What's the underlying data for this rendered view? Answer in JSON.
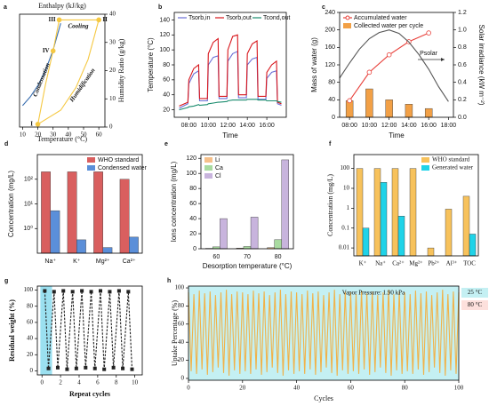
{
  "chart_data": [
    {
      "panel": "a",
      "type": "line",
      "title": "Enthalpy (kJ/kg)",
      "xlabel": "Temperature (°C)",
      "ylabel": "Humidity Ratio (g/kg)",
      "y_axis_side": "right",
      "xlim": [
        8,
        64
      ],
      "xticks": [
        10,
        20,
        30,
        40,
        50,
        60
      ],
      "ylim": [
        0,
        40
      ],
      "yticks": [
        0,
        10,
        20,
        30,
        40
      ],
      "series": [
        {
          "color": "#3a6fb0",
          "x": [
            10,
            15,
            20,
            25,
            30,
            35
          ],
          "values": [
            7.6,
            10.7,
            14.7,
            20,
            27.3,
            36.8
          ]
        },
        {
          "color": "#f5c842",
          "x": [
            20,
            35,
            45,
            53,
            60,
            34,
            30,
            25,
            20
          ],
          "values": [
            1,
            6,
            14,
            24,
            38,
            38,
            27,
            15,
            1
          ]
        },
        {
          "color": "#f5c842",
          "mode": "markers",
          "marker": "circle",
          "x": [
            20,
            60,
            34,
            30
          ],
          "values": [
            1,
            38,
            38,
            27
          ],
          "labels": [
            "I",
            "II",
            "III",
            "IV"
          ]
        }
      ],
      "annotations": [
        "Cooling",
        "Condensation",
        "Humidification"
      ]
    },
    {
      "panel": "b",
      "type": "line",
      "xlabel": "Time",
      "ylabel": "Temperature (°C)",
      "legend": "top",
      "xlim": [
        6.5,
        18
      ],
      "xticks": [
        {
          "value": 8,
          "label": "08:00"
        },
        {
          "value": 10,
          "label": "10:00"
        },
        {
          "value": 12,
          "label": "12:00"
        },
        {
          "value": 14,
          "label": "14:00"
        },
        {
          "value": 16,
          "label": "16:00"
        }
      ],
      "ylim": [
        10,
        150
      ],
      "yticks": [
        20,
        40,
        60,
        80,
        100,
        120,
        140
      ],
      "x": [
        7,
        7.9,
        8,
        8.5,
        9,
        9.1,
        9.9,
        10,
        10.5,
        11,
        11.1,
        11.9,
        12,
        12.5,
        13,
        13.1,
        13.9,
        14,
        14.5,
        15,
        15.1,
        15.9,
        16,
        16.5,
        17,
        17.1,
        17.5
      ],
      "series": [
        {
          "name": "Tsorb,in",
          "color": "#6b6fd6",
          "values": [
            22,
            28,
            55,
            68,
            72,
            32,
            32,
            80,
            90,
            92,
            35,
            35,
            85,
            95,
            98,
            36,
            36,
            80,
            88,
            90,
            34,
            34,
            62,
            70,
            72,
            28,
            26
          ]
        },
        {
          "name": "Tsorb,out",
          "color": "#d8161c",
          "values": [
            25,
            30,
            60,
            75,
            80,
            35,
            35,
            95,
            110,
            115,
            38,
            38,
            100,
            118,
            120,
            40,
            40,
            95,
            108,
            112,
            38,
            38,
            70,
            80,
            85,
            30,
            28
          ]
        },
        {
          "name": "Tcond,out",
          "color": "#1a8c6e",
          "values": [
            20,
            23,
            24,
            25,
            27,
            26,
            27,
            28,
            29,
            30,
            30,
            31,
            32,
            33,
            33,
            33,
            33,
            34,
            34,
            34,
            33,
            33,
            32,
            32,
            32,
            31,
            30
          ]
        }
      ]
    },
    {
      "panel": "c",
      "type": "bar",
      "xlabel": "Time",
      "ylabel": "Mass of water (g)",
      "y2label": "Solar irradiance (kW m⁻²)",
      "legend": "upper left",
      "xlim": [
        7,
        18.5
      ],
      "xticks": [
        {
          "value": 8,
          "label": "08:00"
        },
        {
          "value": 10,
          "label": "10:00"
        },
        {
          "value": 12,
          "label": "12:00"
        },
        {
          "value": 14,
          "label": "14:00"
        },
        {
          "value": 16,
          "label": "16:00"
        },
        {
          "value": 18,
          "label": "18:00"
        }
      ],
      "ylim": [
        0,
        240
      ],
      "yticks": [
        0,
        40,
        80,
        120,
        160,
        200,
        240
      ],
      "y2lim": [
        0,
        1.2
      ],
      "y2ticks": [
        {
          "value": 0,
          "label": "0.0"
        },
        0.2,
        0.4,
        0.6,
        0.8,
        {
          "value": 1,
          "label": "1.0"
        },
        1.2
      ],
      "series": [
        {
          "name": "Accumulated water",
          "type": "line",
          "marker": "circle",
          "color": "#e8403a",
          "x": [
            8,
            10,
            12,
            14,
            16
          ],
          "values": [
            38,
            103,
            143,
            173,
            193
          ]
        },
        {
          "name": "Collected water per cycle",
          "type": "bar",
          "color": "#f2a046",
          "x": [
            8,
            10,
            12,
            14,
            16
          ],
          "values": [
            38,
            65,
            40,
            30,
            20
          ]
        },
        {
          "type": "line",
          "axis": "y2",
          "color": "#555555",
          "x": [
            7,
            8,
            9,
            10,
            11,
            12,
            13,
            14,
            15,
            16,
            17,
            18
          ],
          "values": [
            0.45,
            0.62,
            0.78,
            0.9,
            0.97,
            1,
            0.96,
            0.86,
            0.72,
            0.55,
            0.35,
            0.18
          ]
        }
      ],
      "annotations": [
        "Psolar"
      ]
    },
    {
      "panel": "d",
      "type": "bar",
      "ylabel": "Concentration (mg/L)",
      "log_scale": true,
      "legend": "upper right",
      "ylim": [
        0.1,
        1000
      ],
      "yticks": [
        {
          "value": 1,
          "label": "10⁰"
        },
        {
          "value": 10,
          "label": "10¹"
        },
        {
          "value": 100,
          "label": "10²"
        }
      ],
      "categories": [
        "Na⁺",
        "K⁺",
        "Mg²⁺",
        "Ca²⁺"
      ],
      "series": [
        {
          "name": "WHO standard",
          "color": "#d95f5f",
          "values": [
            200,
            200,
            200,
            100
          ]
        },
        {
          "name": "Condensed water",
          "color": "#5b8fd9",
          "values": [
            5.3,
            0.35,
            0.17,
            0.45
          ]
        }
      ]
    },
    {
      "panel": "e",
      "type": "bar",
      "xlabel": "Desorption temperature (°C)",
      "ylabel": "Ions concentration (mg/L)",
      "legend": "upper left",
      "ylim": [
        0,
        125
      ],
      "yticks": [
        0,
        20,
        40,
        60,
        80,
        100,
        120
      ],
      "categories": [
        "60",
        "70",
        "80"
      ],
      "series": [
        {
          "name": "Li",
          "color": "#f6c08a",
          "values": [
            0.5,
            0.8,
            1.5
          ]
        },
        {
          "name": "Ca",
          "color": "#a9dba0",
          "values": [
            2.5,
            3,
            12
          ]
        },
        {
          "name": "Cl",
          "color": "#c8b4dd",
          "values": [
            40,
            42,
            118
          ]
        }
      ]
    },
    {
      "panel": "f",
      "type": "bar",
      "ylabel": "Concentration (mg/L)",
      "log_scale": true,
      "legend": "upper right",
      "ylim": [
        0.004,
        500
      ],
      "yticks": [
        0.01,
        0.1,
        1,
        10,
        100
      ],
      "categories": [
        "K⁺",
        "Na⁺",
        "Ca²⁺",
        "Mg²⁺",
        "Pb²⁺",
        "Al³⁺",
        "TOC"
      ],
      "series": [
        {
          "name": "WHO standard",
          "color": "#f7c25c",
          "values": [
            100,
            100,
            100,
            100,
            0.01,
            0.9,
            4
          ]
        },
        {
          "name": "Generated water",
          "color": "#1fd3e8",
          "values": [
            0.1,
            20,
            0.4,
            null,
            null,
            null,
            0.05
          ]
        }
      ]
    },
    {
      "panel": "g",
      "type": "line",
      "xlabel": "Repeat cycles",
      "ylabel": "Residual weight (%)",
      "xlim": [
        -0.5,
        10.8
      ],
      "xticks": [
        0,
        2,
        4,
        6,
        8,
        10
      ],
      "ylim": [
        -5,
        105
      ],
      "yticks": [
        0,
        20,
        40,
        60,
        80,
        100
      ],
      "series": [
        {
          "color": "#222222",
          "line_style": "dashed",
          "marker": "square",
          "x": [
            0.3,
            0.7,
            1.3,
            1.7,
            2.3,
            2.7,
            3.3,
            3.7,
            4.3,
            4.7,
            5.3,
            5.7,
            6.3,
            6.7,
            7.3,
            7.7,
            8.3,
            8.7,
            9.3,
            9.7
          ],
          "values": [
            99,
            3,
            98,
            4,
            99,
            2,
            98,
            3,
            99,
            4,
            98,
            3,
            99,
            2,
            98,
            4,
            99,
            3,
            98,
            2
          ]
        }
      ]
    },
    {
      "panel": "h",
      "type": "line",
      "xlabel": "Cycles",
      "ylabel": "Uptake Percentage (%)",
      "annotations": [
        "Vapor Pressure: 1.90 kPa"
      ],
      "phases": [
        {
          "name": "25 °C",
          "color": "#c4f0f3"
        },
        {
          "name": "80 °C",
          "color": "#fde0dc"
        }
      ],
      "xlim": [
        0,
        100
      ],
      "xticks": [
        0,
        20,
        40,
        60,
        80,
        100
      ],
      "ylim": [
        -2,
        102
      ],
      "yticks": [
        0,
        20,
        40,
        60,
        80,
        100
      ],
      "series": [
        {
          "color": "#f0b24a",
          "x": [
            0,
            1,
            2,
            3,
            4,
            5,
            6,
            7,
            8,
            9,
            10,
            11,
            12,
            13,
            14,
            15,
            16,
            17,
            18,
            19,
            20,
            21,
            22,
            23,
            24,
            25,
            26,
            27,
            28,
            29,
            30,
            31,
            32,
            33,
            34,
            35,
            36,
            37,
            38,
            39,
            40,
            41,
            42,
            43,
            44,
            45,
            46,
            47,
            48,
            49,
            50,
            51,
            52,
            53,
            54,
            55,
            56,
            57,
            58,
            59,
            60,
            61,
            62,
            63,
            64,
            65,
            66,
            67,
            68,
            69,
            70,
            71,
            72,
            73,
            74,
            75,
            76,
            77,
            78,
            79,
            80,
            81,
            82,
            83,
            84,
            85,
            86,
            87,
            88,
            89,
            90,
            91,
            92,
            93,
            94,
            95,
            96,
            97,
            98,
            99,
            100
          ],
          "values": [
            95,
            8,
            93,
            5,
            97,
            10,
            94,
            4,
            96,
            7,
            92,
            12,
            95,
            6,
            98,
            3,
            93,
            9,
            96,
            5,
            95,
            8,
            93,
            5,
            97,
            10,
            94,
            4,
            96,
            7,
            92,
            12,
            95,
            6,
            98,
            3,
            93,
            9,
            96,
            5,
            95,
            8,
            93,
            5,
            97,
            10,
            94,
            4,
            96,
            7,
            92,
            12,
            95,
            6,
            98,
            3,
            93,
            9,
            96,
            5,
            95,
            8,
            93,
            5,
            97,
            10,
            94,
            4,
            96,
            7,
            92,
            12,
            95,
            6,
            98,
            3,
            93,
            9,
            96,
            5,
            95,
            8,
            93,
            5,
            97,
            10,
            94,
            4,
            96,
            7,
            92,
            12,
            95,
            6,
            98,
            3,
            93,
            9,
            96,
            5,
            95
          ]
        }
      ]
    }
  ]
}
